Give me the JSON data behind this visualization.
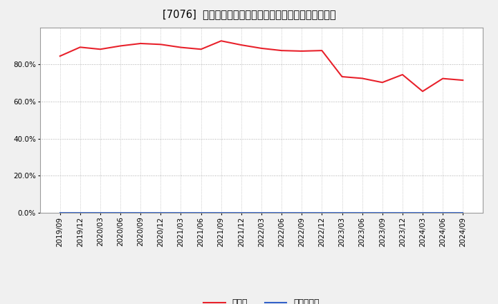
{
  "title": "[7076]  現預金、有利子負債の総資産に対する比率の推移",
  "dates": [
    "2019/09",
    "2019/12",
    "2020/03",
    "2020/06",
    "2020/09",
    "2020/12",
    "2021/03",
    "2021/06",
    "2021/09",
    "2021/12",
    "2022/03",
    "2022/06",
    "2022/09",
    "2022/12",
    "2023/03",
    "2023/06",
    "2023/09",
    "2023/12",
    "2024/03",
    "2024/06",
    "2024/09"
  ],
  "cash_ratio": [
    0.845,
    0.893,
    0.882,
    0.9,
    0.913,
    0.908,
    0.892,
    0.882,
    0.927,
    0.905,
    0.887,
    0.875,
    0.872,
    0.875,
    0.734,
    0.725,
    0.703,
    0.745,
    0.655,
    0.724,
    0.715
  ],
  "debt_ratio": [
    0.0,
    0.0,
    0.0,
    0.0,
    0.0,
    0.0,
    0.0,
    0.0,
    0.0,
    0.0,
    0.0,
    0.0,
    0.0,
    0.0,
    0.0,
    0.0,
    0.0,
    0.0,
    0.0,
    0.0,
    0.0
  ],
  "cash_color": "#e8202a",
  "debt_color": "#3060c8",
  "background_color": "#f0f0f0",
  "plot_bg_color": "#ffffff",
  "grid_color": "#aaaaaa",
  "ylim": [
    0.0,
    1.0
  ],
  "yticks": [
    0.0,
    0.2,
    0.4,
    0.6,
    0.8
  ],
  "legend_cash": "現預金",
  "legend_debt": "有利子負債",
  "title_fontsize": 10.5,
  "tick_fontsize": 7.5,
  "legend_fontsize": 9
}
